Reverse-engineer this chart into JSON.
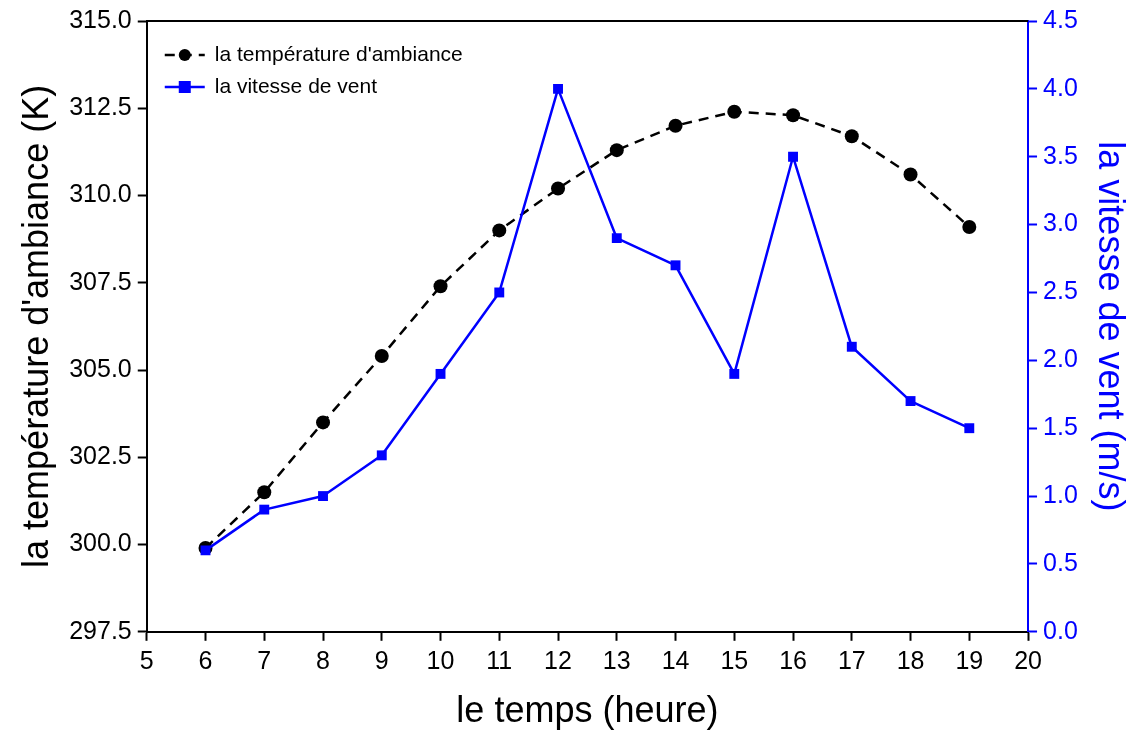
{
  "chart_data": {
    "type": "line",
    "xlabel": "le temps (heure)",
    "ylabel": "la température d'ambiance (K)",
    "y2label": "la vitesse de vent (m/s)",
    "x": [
      6,
      7,
      8,
      9,
      10,
      11,
      12,
      13,
      14,
      15,
      16,
      17,
      18,
      19
    ],
    "series": [
      {
        "name": "la température d'ambiance",
        "color": "#000000",
        "marker": "circle",
        "line_style": "dashed",
        "values": [
          299.9,
          301.5,
          303.5,
          305.4,
          307.4,
          309.0,
          310.2,
          311.3,
          312.0,
          312.4,
          312.3,
          311.7,
          310.6,
          309.1
        ]
      },
      {
        "name": "la vitesse de vent",
        "color": "#0000ff",
        "marker": "square",
        "line_style": "solid",
        "axis": "y2",
        "values": [
          0.6,
          0.9,
          1.0,
          1.3,
          1.9,
          2.5,
          4.0,
          2.9,
          2.7,
          1.9,
          3.5,
          2.1,
          1.7,
          1.5
        ]
      }
    ],
    "xlim": [
      5,
      20
    ],
    "xticks": [
      5,
      6,
      7,
      8,
      9,
      10,
      11,
      12,
      13,
      14,
      15,
      16,
      17,
      18,
      19,
      20
    ],
    "ylim": [
      297.5,
      315
    ],
    "yticks": [
      {
        "value": 297.5,
        "label": "297.5"
      },
      {
        "value": 300,
        "label": "300.0"
      },
      {
        "value": 302.5,
        "label": "302.5"
      },
      {
        "value": 305,
        "label": "305.0"
      },
      {
        "value": 307.5,
        "label": "307.5"
      },
      {
        "value": 310,
        "label": "310.0"
      },
      {
        "value": 312.5,
        "label": "312.5"
      },
      {
        "value": 315,
        "label": "315.0"
      }
    ],
    "y2lim": [
      0,
      4.5
    ],
    "y2ticks": [
      {
        "value": 0,
        "label": "0.0"
      },
      {
        "value": 0.5,
        "label": "0.5"
      },
      {
        "value": 1,
        "label": "1.0"
      },
      {
        "value": 1.5,
        "label": "1.5"
      },
      {
        "value": 2,
        "label": "2.0"
      },
      {
        "value": 2.5,
        "label": "2.5"
      },
      {
        "value": 3,
        "label": "3.0"
      },
      {
        "value": 3.5,
        "label": "3.5"
      },
      {
        "value": 4,
        "label": "4.0"
      },
      {
        "value": 4.5,
        "label": "4.5"
      }
    ],
    "grid": false,
    "legend": "top left"
  }
}
